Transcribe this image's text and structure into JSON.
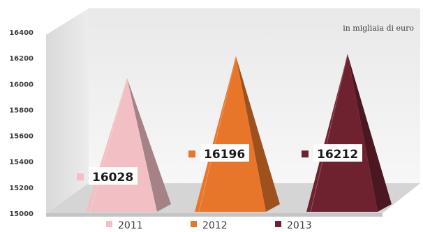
{
  "chart_data": {
    "type": "bar",
    "shape": "pyramid-3d",
    "unit_note": "in migliaia di euro",
    "categories": [
      "2011",
      "2012",
      "2013"
    ],
    "values": [
      16028,
      16196,
      16212
    ],
    "series_colors": [
      "#f2bfc4",
      "#e8762a",
      "#6e2230"
    ],
    "ylim": [
      15000,
      16400
    ],
    "yticks": [
      15000,
      15200,
      15400,
      15600,
      15800,
      16000,
      16200,
      16400
    ],
    "grid": false,
    "legend_position": "bottom"
  }
}
